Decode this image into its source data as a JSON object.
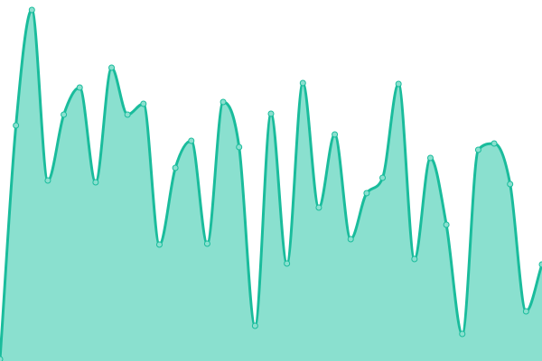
{
  "chart_data": {
    "type": "area",
    "title": "",
    "xlabel": "",
    "ylabel": "",
    "x": [
      0,
      1,
      2,
      3,
      4,
      5,
      6,
      7,
      8,
      9,
      10,
      11,
      12,
      13,
      14,
      15,
      16,
      17,
      18,
      19,
      20,
      21,
      22,
      23,
      24,
      25,
      26,
      27,
      28,
      29,
      30,
      31,
      32,
      33,
      34
    ],
    "values": [
      2,
      261,
      389,
      200,
      273,
      303,
      198,
      325,
      273,
      285,
      129,
      214,
      244,
      130,
      287,
      237,
      39,
      274,
      108,
      308,
      170,
      251,
      135,
      186,
      203,
      307,
      113,
      225,
      151,
      30,
      234,
      241,
      196,
      55,
      107
    ],
    "xlim": [
      0,
      34
    ],
    "ylim": [
      0,
      400
    ],
    "grid": false,
    "axes_visible": false,
    "smooth": true,
    "markers": true,
    "colors": {
      "line": "#1abc9c",
      "fill": "#8ae0cf",
      "marker_fill": "#8ae0cf"
    }
  }
}
